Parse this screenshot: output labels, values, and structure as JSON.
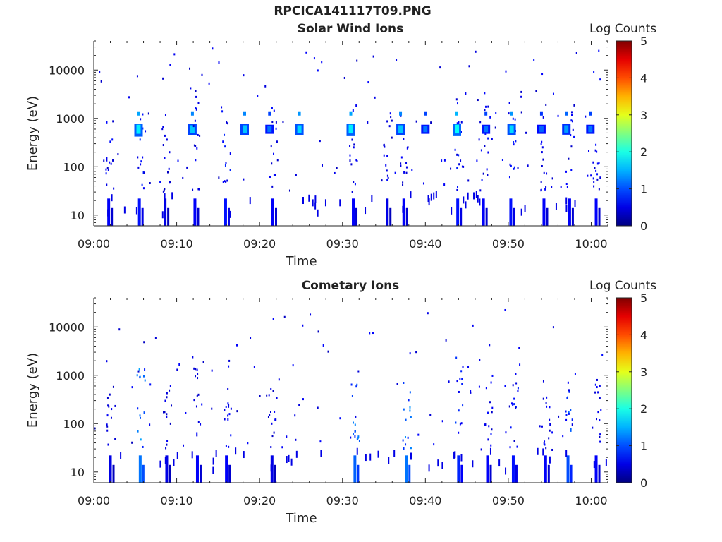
{
  "main_title": "RPCICA141117T09.PNG",
  "colors": {
    "axis": "#262626",
    "background": "#ffffff"
  },
  "chart_data": [
    {
      "type": "heatmap",
      "title": "Solar Wind Ions",
      "xlabel": "Time",
      "ylabel": "Energy (eV)",
      "x_ticks": [
        "09:00",
        "09:10",
        "09:20",
        "09:30",
        "09:40",
        "09:50",
        "10:00"
      ],
      "x_range": [
        "09:00",
        "10:02"
      ],
      "y_scale": "log",
      "y_ticks": [
        10,
        100,
        1000,
        10000
      ],
      "y_tick_labels": [
        "10",
        "100",
        "1000",
        "10000"
      ],
      "y_range": [
        6,
        40000
      ],
      "colorbar": {
        "label": "Log Counts",
        "range": [
          0,
          5
        ],
        "ticks": [
          "0",
          "1",
          "2",
          "3",
          "4",
          "5"
        ],
        "colormap": "jet"
      },
      "bands": [
        {
          "t": 5.4,
          "e0": 420,
          "e1": 780,
          "v": 1.8
        },
        {
          "t": 11.9,
          "e0": 450,
          "e1": 760,
          "v": 1.6
        },
        {
          "t": 18.2,
          "e0": 450,
          "e1": 760,
          "v": 1.6
        },
        {
          "t": 21.2,
          "e0": 480,
          "e1": 740,
          "v": 1.2
        },
        {
          "t": 24.8,
          "e0": 450,
          "e1": 760,
          "v": 1.7
        },
        {
          "t": 31.0,
          "e0": 430,
          "e1": 780,
          "v": 1.8
        },
        {
          "t": 37.0,
          "e0": 450,
          "e1": 760,
          "v": 1.6
        },
        {
          "t": 40.0,
          "e0": 480,
          "e1": 740,
          "v": 1.2
        },
        {
          "t": 43.8,
          "e0": 430,
          "e1": 780,
          "v": 1.9
        },
        {
          "t": 47.3,
          "e0": 480,
          "e1": 740,
          "v": 1.2
        },
        {
          "t": 50.4,
          "e0": 450,
          "e1": 760,
          "v": 1.7
        },
        {
          "t": 54.0,
          "e0": 480,
          "e1": 740,
          "v": 1.1
        },
        {
          "t": 57.0,
          "e0": 460,
          "e1": 760,
          "v": 1.4
        },
        {
          "t": 59.9,
          "e0": 480,
          "e1": 740,
          "v": 1.2
        }
      ],
      "lines": [
        {
          "t": 1.8,
          "e0": 6,
          "e1": 1300,
          "v": 0.6
        },
        {
          "t": 5.5,
          "e0": 6,
          "e1": 2000,
          "v": 0.7
        },
        {
          "t": 8.6,
          "e0": 6,
          "e1": 1300,
          "v": 0.5
        },
        {
          "t": 12.2,
          "e0": 6,
          "e1": 3000,
          "v": 0.6
        },
        {
          "t": 15.9,
          "e0": 6,
          "e1": 1500,
          "v": 0.7
        },
        {
          "t": 21.6,
          "e0": 6,
          "e1": 2500,
          "v": 0.6
        },
        {
          "t": 31.3,
          "e0": 6,
          "e1": 2500,
          "v": 0.6
        },
        {
          "t": 35.4,
          "e0": 6,
          "e1": 1500,
          "v": 0.5
        },
        {
          "t": 37.4,
          "e0": 6,
          "e1": 2500,
          "v": 0.6
        },
        {
          "t": 43.9,
          "e0": 6,
          "e1": 2500,
          "v": 0.7
        },
        {
          "t": 47.0,
          "e0": 6,
          "e1": 2000,
          "v": 0.6
        },
        {
          "t": 50.3,
          "e0": 6,
          "e1": 2500,
          "v": 0.7
        },
        {
          "t": 54.3,
          "e0": 6,
          "e1": 1500,
          "v": 0.6
        },
        {
          "t": 57.4,
          "e0": 6,
          "e1": 2500,
          "v": 0.6
        },
        {
          "t": 60.6,
          "e0": 6,
          "e1": 1300,
          "v": 0.6
        }
      ],
      "seed": 17,
      "scatter_density": 1.0
    },
    {
      "type": "heatmap",
      "title": "Cometary Ions",
      "xlabel": "Time",
      "ylabel": "Energy (eV)",
      "x_ticks": [
        "09:00",
        "09:10",
        "09:20",
        "09:30",
        "09:40",
        "09:50",
        "10:00"
      ],
      "x_range": [
        "09:00",
        "10:02"
      ],
      "y_scale": "log",
      "y_ticks": [
        10,
        100,
        1000,
        10000
      ],
      "y_tick_labels": [
        "10",
        "100",
        "1000",
        "10000"
      ],
      "y_range": [
        6,
        40000
      ],
      "colorbar": {
        "label": "Log Counts",
        "range": [
          0,
          5
        ],
        "ticks": [
          "0",
          "1",
          "2",
          "3",
          "4",
          "5"
        ],
        "colormap": "jet"
      },
      "bands": [],
      "lines": [
        {
          "t": 2.0,
          "e0": 6,
          "e1": 1000,
          "v": 0.5
        },
        {
          "t": 5.6,
          "e0": 6,
          "e1": 2000,
          "v": 1.2
        },
        {
          "t": 8.8,
          "e0": 6,
          "e1": 700,
          "v": 0.5
        },
        {
          "t": 12.5,
          "e0": 6,
          "e1": 1500,
          "v": 0.6
        },
        {
          "t": 16.0,
          "e0": 6,
          "e1": 1200,
          "v": 0.6
        },
        {
          "t": 21.5,
          "e0": 6,
          "e1": 800,
          "v": 0.5
        },
        {
          "t": 31.5,
          "e0": 6,
          "e1": 700,
          "v": 1.1
        },
        {
          "t": 37.7,
          "e0": 6,
          "e1": 700,
          "v": 1.2
        },
        {
          "t": 44.0,
          "e0": 6,
          "e1": 2500,
          "v": 0.8
        },
        {
          "t": 47.5,
          "e0": 6,
          "e1": 1000,
          "v": 0.6
        },
        {
          "t": 50.6,
          "e0": 6,
          "e1": 2500,
          "v": 0.7
        },
        {
          "t": 54.5,
          "e0": 6,
          "e1": 900,
          "v": 0.6
        },
        {
          "t": 57.2,
          "e0": 6,
          "e1": 1500,
          "v": 1.0
        },
        {
          "t": 60.6,
          "e0": 6,
          "e1": 900,
          "v": 0.6
        }
      ],
      "seed": 53,
      "scatter_density": 0.8
    }
  ]
}
